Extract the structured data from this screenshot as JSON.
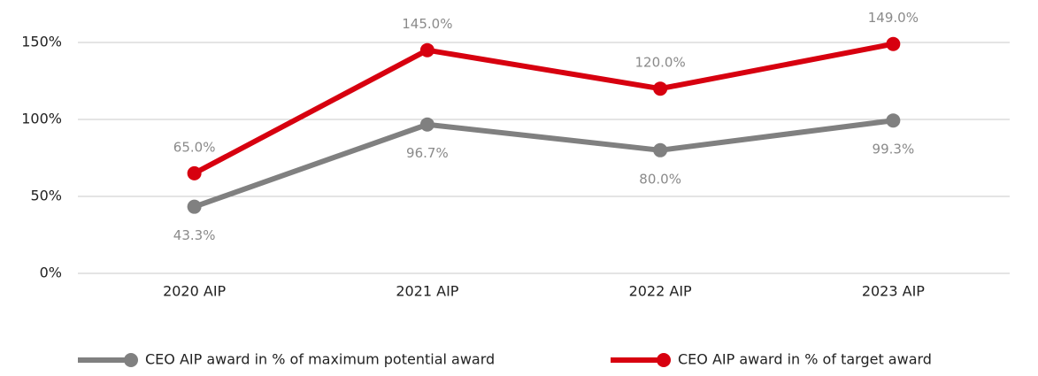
{
  "chart_data": {
    "type": "line",
    "categories": [
      "2020 AIP",
      "2021 AIP",
      "2022 AIP",
      "2023 AIP"
    ],
    "series": [
      {
        "name": "CEO AIP award in % of maximum potential award",
        "color": "#808080",
        "values": [
          43.3,
          96.7,
          80.0,
          99.3
        ],
        "value_labels": [
          "43.3%",
          "96.7%",
          "80.0%",
          "99.3%"
        ]
      },
      {
        "name": "CEO AIP award in % of target award",
        "color": "#d7000f",
        "values": [
          65.0,
          145.0,
          120.0,
          149.0
        ],
        "value_labels": [
          "65.0%",
          "145.0%",
          "120.0%",
          "149.0%"
        ]
      }
    ],
    "ylim": [
      0,
      150
    ],
    "yticks": [
      {
        "value": 0,
        "label": "0%"
      },
      {
        "value": 50,
        "label": "50%"
      },
      {
        "value": 100,
        "label": "100%"
      },
      {
        "value": 150,
        "label": "150%"
      }
    ],
    "grid": true,
    "legend": "bottom"
  }
}
